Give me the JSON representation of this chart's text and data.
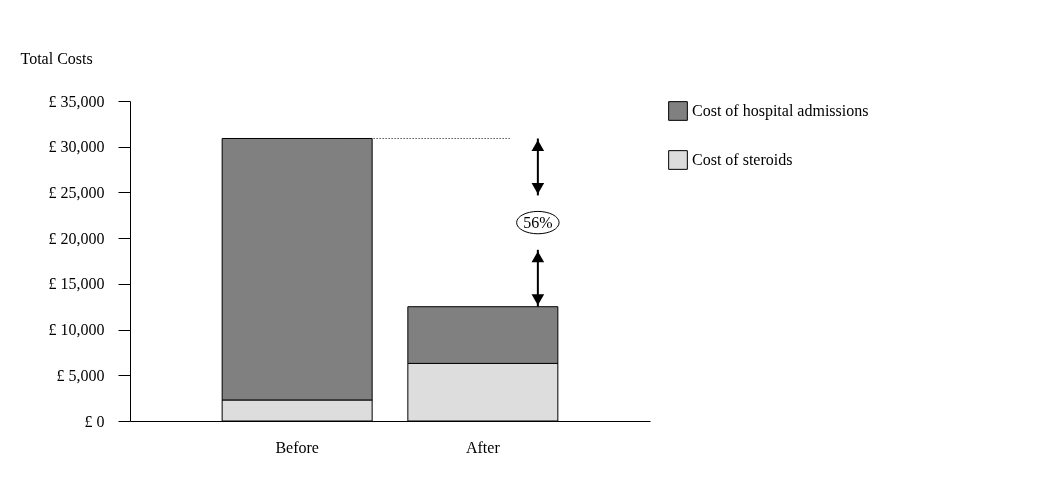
{
  "chart_data": {
    "type": "bar",
    "stacked": true,
    "ylabel": "Total Costs",
    "categories": [
      "Before",
      "After"
    ],
    "series": [
      {
        "name": "Cost of steroids",
        "color": "#dddddd",
        "values": [
          2300,
          6300
        ]
      },
      {
        "name": "Cost of hospital admissions",
        "color": "#808080",
        "values": [
          28600,
          6200
        ]
      }
    ],
    "ylim": [
      0,
      35000
    ],
    "yticks": [
      {
        "value": 0,
        "label": "£ 0"
      },
      {
        "value": 5000,
        "label": "£ 5,000"
      },
      {
        "value": 10000,
        "label": "£ 10,000"
      },
      {
        "value": 15000,
        "label": "£ 15,000"
      },
      {
        "value": 20000,
        "label": "£ 20,000"
      },
      {
        "value": 25000,
        "label": "£ 25,000"
      },
      {
        "value": 30000,
        "label": "£ 30,000"
      },
      {
        "value": 35000,
        "label": "£ 35,000"
      }
    ],
    "annotations": [
      "56%"
    ],
    "ref_lines": [
      {
        "axis": "y",
        "value": 30900,
        "line_style": "dotted",
        "color": "#000000"
      }
    ],
    "legend": "right",
    "grid": false
  }
}
